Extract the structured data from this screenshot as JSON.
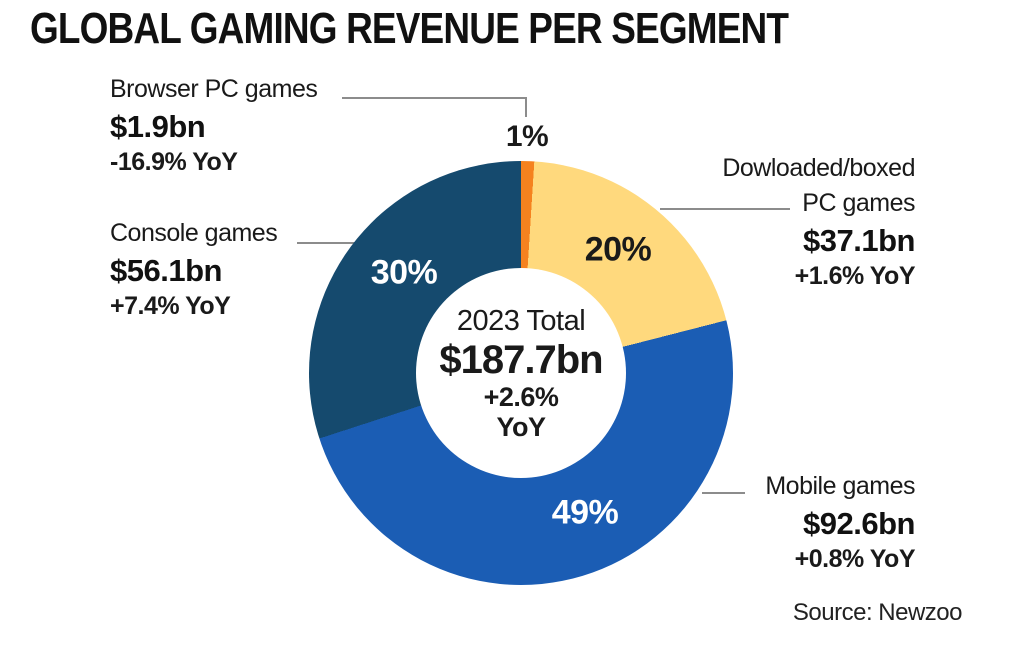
{
  "title": "GLOBAL GAMING REVENUE PER SEGMENT",
  "source": "Source: Newzoo",
  "center": {
    "label": "2023 Total",
    "total": "$187.7bn",
    "yoy_pct": "+2.6%",
    "yoy_word": "YoY"
  },
  "segments": [
    {
      "name": "Browser PC games",
      "name_lines": [
        "Browser PC games"
      ],
      "revenue": "$1.9bn",
      "yoy": "-16.9% YoY",
      "percent_label": "1%",
      "percent": 1,
      "color": "#F5821F"
    },
    {
      "name": "Dowloaded/boxed PC games",
      "name_lines": [
        "Dowloaded/boxed",
        "PC games"
      ],
      "revenue": "$37.1bn",
      "yoy": "+1.6% YoY",
      "percent_label": "20%",
      "percent": 20,
      "color": "#FFD97D"
    },
    {
      "name": "Mobile games",
      "name_lines": [
        "Mobile games"
      ],
      "revenue": "$92.6bn",
      "yoy": "+0.8% YoY",
      "percent_label": "49%",
      "percent": 49,
      "color": "#1B5DB4"
    },
    {
      "name": "Console games",
      "name_lines": [
        "Console games"
      ],
      "revenue": "$56.1bn",
      "yoy": "+7.4% YoY",
      "percent_label": "30%",
      "percent": 30,
      "color": "#154A6E"
    }
  ],
  "chart_data": {
    "type": "pie",
    "subtype": "donut",
    "title": "GLOBAL GAMING REVENUE PER SEGMENT",
    "categories": [
      "Browser PC games",
      "Dowloaded/boxed PC games",
      "Mobile games",
      "Console games"
    ],
    "values_percent": [
      1,
      20,
      49,
      30
    ],
    "values_revenue_bn": [
      1.9,
      37.1,
      92.6,
      56.1
    ],
    "yoy_change_percent": [
      -16.9,
      1.6,
      0.8,
      7.4
    ],
    "colors": [
      "#F5821F",
      "#FFD97D",
      "#1B5DB4",
      "#154A6E"
    ],
    "total": {
      "year": 2023,
      "revenue_bn": 187.7,
      "yoy_percent": 2.6
    },
    "start_angle_deg": 0,
    "direction": "clockwise",
    "inner_radius_ratio": 0.495,
    "legend": "none",
    "source": "Source: Newzoo"
  }
}
